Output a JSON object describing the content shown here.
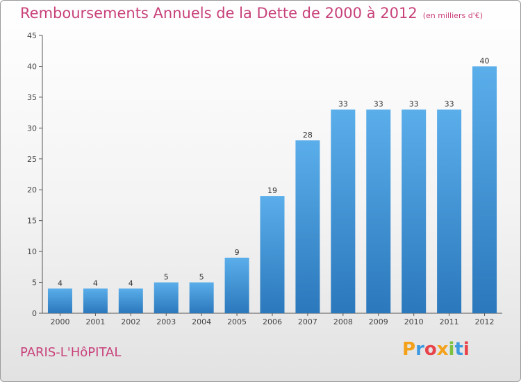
{
  "header": {
    "title": "Remboursements Annuels de la Dette de 2000 à 2012",
    "unit": "(en milliers d'€)"
  },
  "footer": {
    "commune": "PARIS-L'HôPITAL",
    "logo": "Proxiti"
  },
  "colors": {
    "bar_top": "#5aaeea",
    "bar_bottom": "#2b78bc",
    "title": "#c8417a"
  },
  "logo_letters": [
    {
      "ch": "P",
      "color": "#f4a11a"
    },
    {
      "ch": "r",
      "color": "#3d9ae0"
    },
    {
      "ch": "o",
      "color": "#e8434a"
    },
    {
      "ch": "x",
      "color": "#f4a11a"
    },
    {
      "ch": "i",
      "color": "#7cc142"
    },
    {
      "ch": "t",
      "color": "#3d9ae0"
    },
    {
      "ch": "i",
      "color": "#e8434a"
    }
  ],
  "chart_data": {
    "type": "bar",
    "title": "Remboursements Annuels de la Dette de 2000 à 2012",
    "xlabel": "",
    "ylabel": "",
    "ylim": [
      0,
      45
    ],
    "yticks": [
      0,
      5,
      10,
      15,
      20,
      25,
      30,
      35,
      40,
      45
    ],
    "grid": false,
    "categories": [
      "2000",
      "2001",
      "2002",
      "2003",
      "2004",
      "2005",
      "2006",
      "2007",
      "2008",
      "2009",
      "2010",
      "2011",
      "2012"
    ],
    "values": [
      4,
      4,
      4,
      5,
      5,
      9,
      19,
      28,
      33,
      33,
      33,
      33,
      40
    ]
  }
}
